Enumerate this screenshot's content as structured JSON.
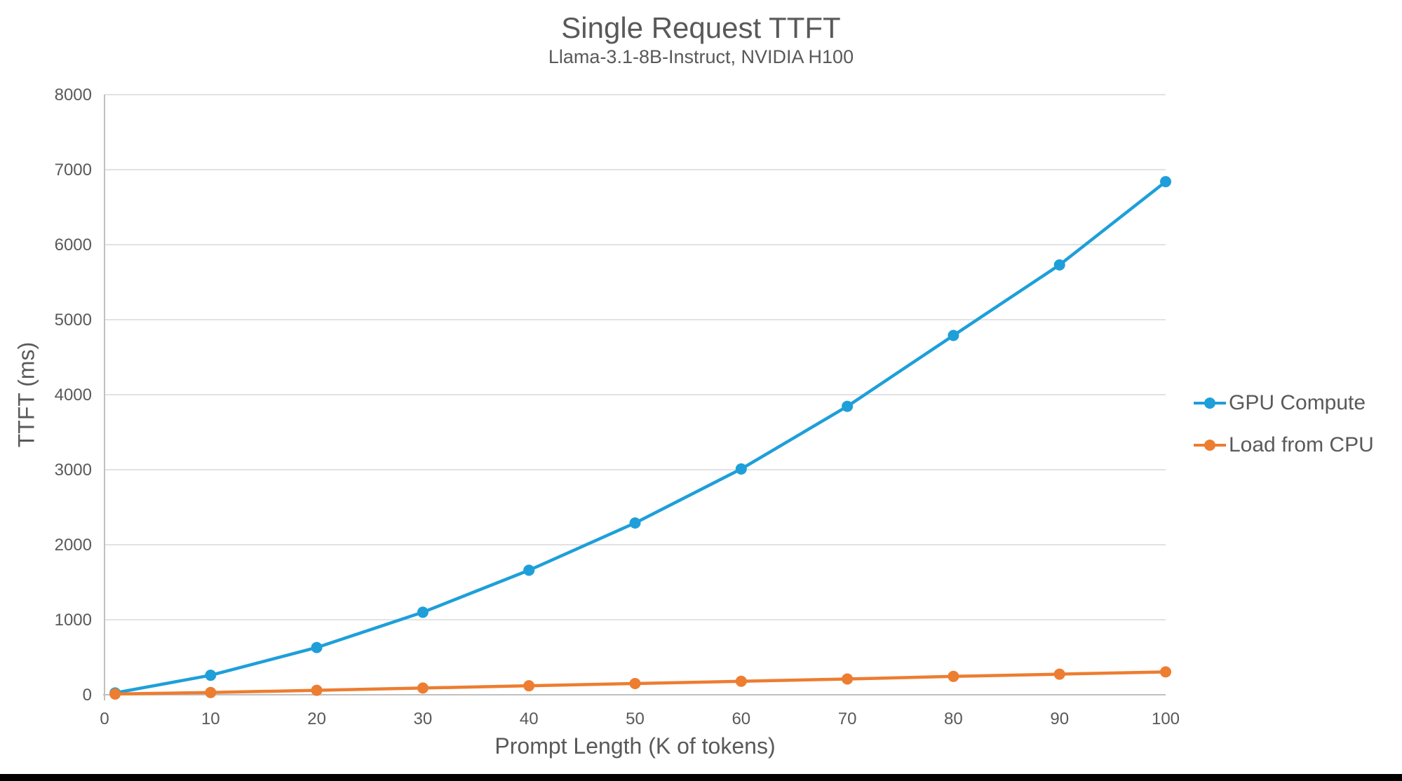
{
  "chart_data": {
    "type": "line",
    "title": "Single Request TTFT",
    "subtitle": "Llama-3.1-8B-Instruct, NVIDIA H100",
    "xlabel": "Prompt Length (K of tokens)",
    "ylabel": "TTFT (ms)",
    "x": [
      1,
      10,
      20,
      30,
      40,
      50,
      60,
      70,
      80,
      90,
      100
    ],
    "series": [
      {
        "name": "GPU Compute",
        "color": "#1E9FD9",
        "values": [
          25,
          260,
          630,
          1100,
          1660,
          2290,
          3010,
          3845,
          4790,
          5730,
          6840
        ]
      },
      {
        "name": "Load from CPU",
        "color": "#ED7D31",
        "values": [
          10,
          30,
          60,
          90,
          120,
          150,
          180,
          210,
          245,
          275,
          305
        ]
      }
    ],
    "xlim": [
      0,
      100
    ],
    "ylim": [
      0,
      8000
    ],
    "x_ticks": [
      0,
      10,
      20,
      30,
      40,
      50,
      60,
      70,
      80,
      90,
      100
    ],
    "y_ticks": [
      0,
      1000,
      2000,
      3000,
      4000,
      5000,
      6000,
      7000,
      8000
    ],
    "grid": "horizontal",
    "legend_position": "right",
    "marker": "circle"
  },
  "style": {
    "text_color": "#595959",
    "gridline_color": "#D9D9D9",
    "axis_color": "#C0C0C0",
    "background_color": "#FFFFFF",
    "bottom_bar_color": "#000000",
    "tick_font_size": 24
  }
}
